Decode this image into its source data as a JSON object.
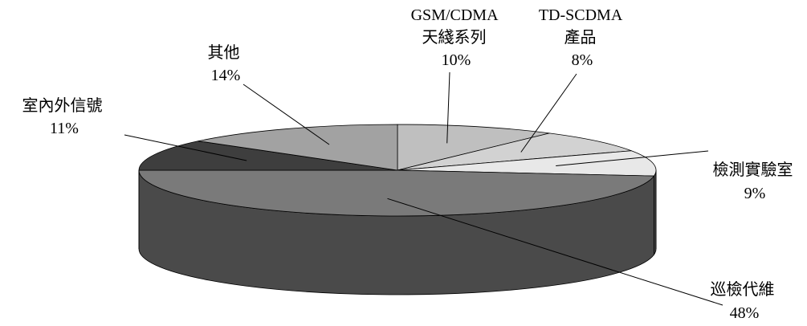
{
  "chart_data": {
    "type": "pie",
    "three_d": true,
    "title": "",
    "categories": [
      "GSM/CDMA\n天綫系列",
      "TD-SCDMA\n產品",
      "檢測實驗室",
      "巡檢代維",
      "室內外信號",
      "其他"
    ],
    "values": [
      10,
      8,
      9,
      48,
      11,
      14
    ],
    "value_labels": [
      "10%",
      "8%",
      "9%",
      "48%",
      "11%",
      "14%"
    ],
    "legend": "none",
    "colors": {
      "gsm": "#bfbfbf",
      "td": "#d2d2d2",
      "lab": "#e8e8e8",
      "patrol": "#7a7a7a",
      "indoor": "#3e3e3e",
      "other": "#a2a2a2",
      "side": "#4a4a4a",
      "line": "#000000"
    }
  }
}
